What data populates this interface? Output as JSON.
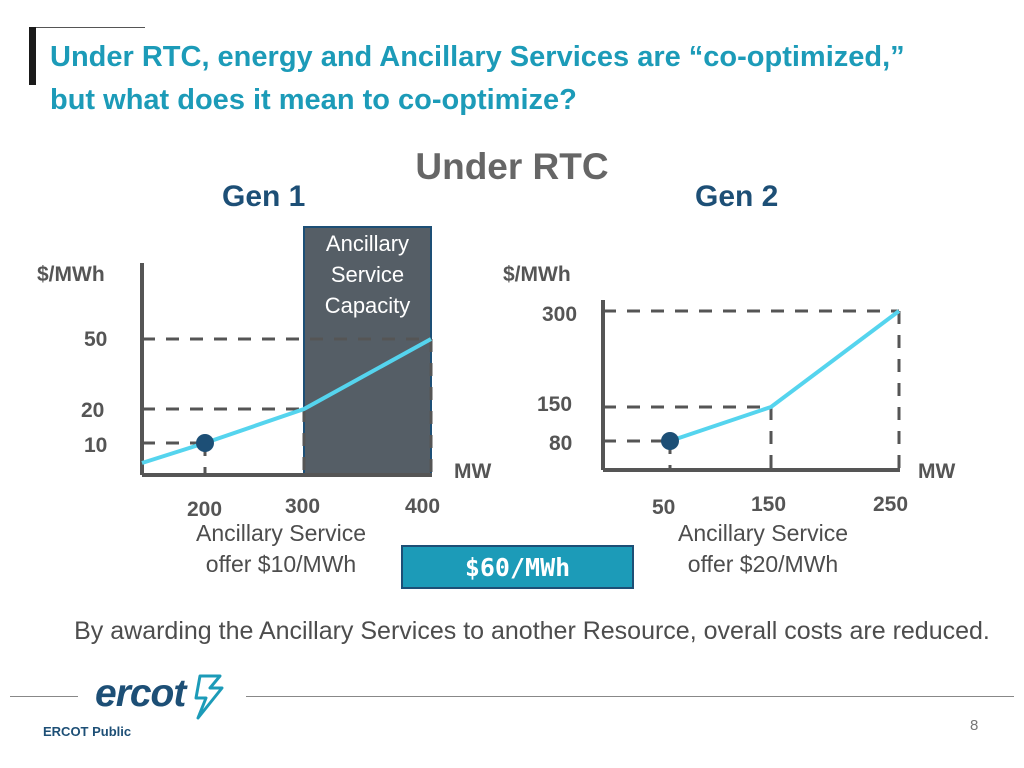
{
  "title": "Under RTC, energy and Ancillary Services are “co-optimized,” but what does it mean to co-optimize?",
  "subtitle": "Under RTC",
  "ancillary_box_label": "Ancillary Service Capacity",
  "price_box": "$60/MWh",
  "bottom_text": "By awarding the Ancillary Services to another Resource, overall costs are reduced.",
  "footer": {
    "logo": "ercot",
    "label": "ERCOT Public",
    "page": "8"
  },
  "colors": {
    "title": "#1c9bb8",
    "navy": "#1d4f76",
    "curve": "#55d4ee",
    "box": "#555e66",
    "gray_text": "#555555"
  },
  "chart_data": [
    {
      "type": "line",
      "title": "Gen 1",
      "xlabel": "MW",
      "ylabel": "$/MWh",
      "xlim": [
        150,
        400
      ],
      "ylim": [
        0,
        80
      ],
      "x_ticks": [
        "200",
        "300",
        "400"
      ],
      "y_ticks": [
        "50",
        "20",
        "10"
      ],
      "series": [
        {
          "x": [
            150,
            200,
            300,
            400
          ],
          "y": [
            5,
            10,
            20,
            50
          ]
        }
      ],
      "dispatch_point": {
        "x": 200,
        "y": 10
      },
      "shaded_region": {
        "x_from": 300,
        "x_to": 400
      },
      "caption": [
        "Ancillary Service",
        "offer $10/MWh"
      ]
    },
    {
      "type": "line",
      "title": "Gen 2",
      "xlabel": "MW",
      "ylabel": "$/MWh",
      "xlim": [
        10,
        250
      ],
      "ylim": [
        50,
        350
      ],
      "x_ticks": [
        "50",
        "150",
        "250"
      ],
      "y_ticks": [
        "300",
        "150",
        "80"
      ],
      "series": [
        {
          "x": [
            50,
            150,
            250
          ],
          "y": [
            80,
            150,
            300
          ]
        }
      ],
      "dispatch_point": {
        "x": 50,
        "y": 80
      },
      "caption": [
        "Ancillary Service",
        "offer $20/MWh"
      ]
    }
  ]
}
